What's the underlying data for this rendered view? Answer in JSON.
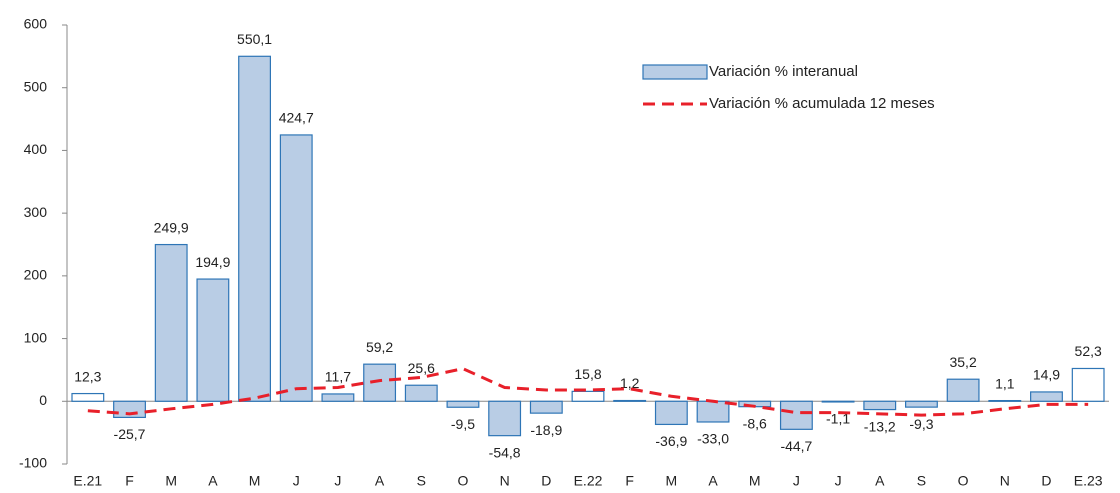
{
  "chart_data": {
    "type": "bar",
    "categories": [
      "E.21",
      "F",
      "M",
      "A",
      "M",
      "J",
      "J",
      "A",
      "S",
      "O",
      "N",
      "D",
      "E.22",
      "F",
      "M",
      "A",
      "M",
      "J",
      "J",
      "A",
      "S",
      "O",
      "N",
      "D",
      "E.23"
    ],
    "series": [
      {
        "name": "Variación % interanual",
        "type": "bar",
        "color": "#b9cde5",
        "edge_color": "#2e75b6",
        "colors": [
          "#ffffff",
          "#b9cde5",
          "#b9cde5",
          "#b9cde5",
          "#b9cde5",
          "#b9cde5",
          "#b9cde5",
          "#b9cde5",
          "#b9cde5",
          "#b9cde5",
          "#b9cde5",
          "#b9cde5",
          "#ffffff",
          "#b9cde5",
          "#b9cde5",
          "#b9cde5",
          "#b9cde5",
          "#b9cde5",
          "#b9cde5",
          "#b9cde5",
          "#b9cde5",
          "#b9cde5",
          "#b9cde5",
          "#b9cde5",
          "#ffffff"
        ],
        "values": [
          12.3,
          -25.7,
          249.9,
          194.9,
          550.1,
          424.7,
          11.7,
          59.2,
          25.6,
          -9.5,
          -54.8,
          -18.9,
          15.8,
          1.2,
          -36.9,
          -33.0,
          -8.6,
          -44.7,
          -1.1,
          -13.2,
          -9.3,
          35.2,
          1.1,
          14.9,
          52.3
        ],
        "value_labels": [
          "12,3",
          "-25,7",
          "249,9",
          "194,9",
          "550,1",
          "424,7",
          "11,7",
          "59,2",
          "25,6",
          "-9,5",
          "-54,8",
          "-18,9",
          "15,8",
          "1,2",
          "-36,9",
          "-33,0",
          "-8,6",
          "-44,7",
          "-1,1",
          "-13,2",
          "-9,3",
          "35,2",
          "1,1",
          "14,9",
          "52,3"
        ]
      },
      {
        "name": "Variación % acumulada 12 meses",
        "type": "line",
        "color": "#e8202a",
        "dashed": true,
        "values": [
          -15,
          -20,
          -12,
          -5,
          5,
          20,
          22,
          33,
          38,
          52,
          22,
          18,
          18,
          20,
          8,
          0,
          -8,
          -18,
          -18,
          -20,
          -22,
          -20,
          -12,
          -5,
          -5
        ]
      }
    ],
    "ylim": [
      -100,
      600
    ],
    "yticks": [
      -100,
      0,
      100,
      200,
      300,
      400,
      500,
      600
    ]
  }
}
